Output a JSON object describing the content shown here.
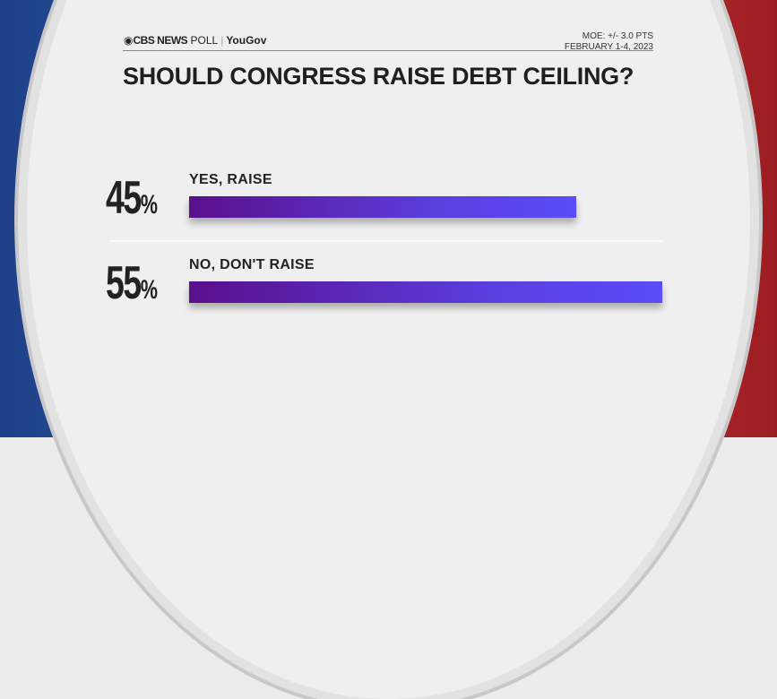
{
  "header": {
    "brand": "CBS NEWS",
    "poll_word": "POLL",
    "partner": "YouGov",
    "moe": "MOE: +/- 3.0 PTS",
    "dates": "FEBRUARY 1-4, 2023"
  },
  "chart_data": {
    "type": "bar",
    "orientation": "horizontal",
    "title": "SHOULD CONGRESS RAISE DEBT CEILING?",
    "categories": [
      "YES, RAISE",
      "NO, DON'T RAISE"
    ],
    "values": [
      45,
      55
    ],
    "data_labels": [
      "45",
      "55"
    ],
    "unit": "%",
    "bar_gradient": [
      "#5a0f8c",
      "#5a4cf8"
    ],
    "grid": false
  }
}
